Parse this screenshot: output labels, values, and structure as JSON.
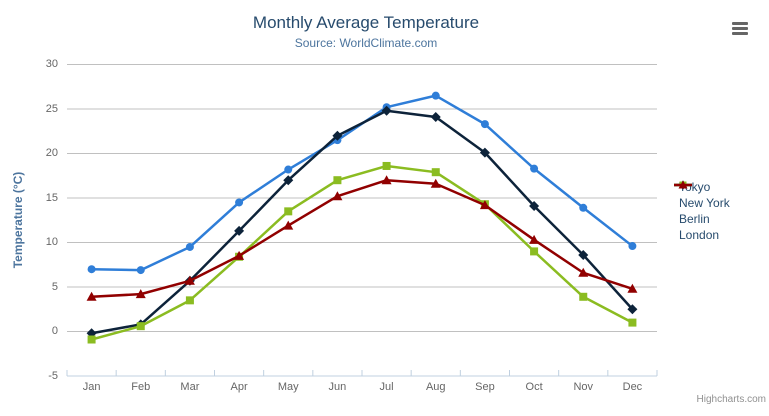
{
  "header": {
    "title": "Monthly Average Temperature",
    "subtitle": "Source: WorldClimate.com"
  },
  "chart_data": {
    "type": "line",
    "title": "Monthly Average Temperature",
    "subtitle": "Source: WorldClimate.com",
    "categories": [
      "Jan",
      "Feb",
      "Mar",
      "Apr",
      "May",
      "Jun",
      "Jul",
      "Aug",
      "Sep",
      "Oct",
      "Nov",
      "Dec"
    ],
    "series": [
      {
        "name": "Tokyo",
        "color": "#2f7ed8",
        "marker": "circle",
        "values": [
          7.0,
          6.9,
          9.5,
          14.5,
          18.2,
          21.5,
          25.2,
          26.5,
          23.3,
          18.3,
          13.9,
          9.6
        ]
      },
      {
        "name": "New York",
        "color": "#0d233a",
        "marker": "diamond",
        "values": [
          -0.2,
          0.8,
          5.7,
          11.3,
          17.0,
          22.0,
          24.8,
          24.1,
          20.1,
          14.1,
          8.6,
          2.5
        ]
      },
      {
        "name": "Berlin",
        "color": "#8bbc21",
        "marker": "square",
        "values": [
          -0.9,
          0.6,
          3.5,
          8.4,
          13.5,
          17.0,
          18.6,
          17.9,
          14.3,
          9.0,
          3.9,
          1.0
        ]
      },
      {
        "name": "London",
        "color": "#910000",
        "marker": "triangle",
        "values": [
          3.9,
          4.2,
          5.7,
          8.5,
          11.9,
          15.2,
          17.0,
          16.6,
          14.2,
          10.3,
          6.6,
          4.8
        ]
      }
    ],
    "xlabel": "",
    "ylabel": "Temperature (°C)",
    "ylim": [
      -5,
      30
    ],
    "yticks": [
      -5,
      0,
      5,
      10,
      15,
      20,
      25,
      30
    ],
    "legend_position": "right",
    "grid": "horizontal",
    "grid_color": "#C0C0C0",
    "axis_line_color": "#C0D0E0",
    "axis_label_color": "#666666",
    "title_color": "#274b6d",
    "subtitle_color": "#4d759e"
  },
  "icons": {
    "export_menu": "hamburger-icon"
  },
  "credits": {
    "label": "Highcharts.com"
  }
}
